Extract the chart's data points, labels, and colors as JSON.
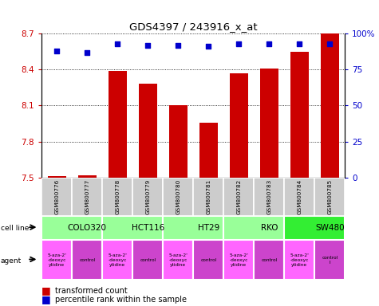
{
  "title": "GDS4397 / 243916_x_at",
  "samples": [
    "GSM800776",
    "GSM800777",
    "GSM800778",
    "GSM800779",
    "GSM800780",
    "GSM800781",
    "GSM800782",
    "GSM800783",
    "GSM800784",
    "GSM800785"
  ],
  "bar_values": [
    7.51,
    7.52,
    8.39,
    8.28,
    8.1,
    7.96,
    8.37,
    8.41,
    8.55,
    8.7
  ],
  "percentile_values": [
    88,
    87,
    93,
    92,
    92,
    91,
    93,
    93,
    93,
    93
  ],
  "ylim_left": [
    7.5,
    8.7
  ],
  "ylim_right": [
    0,
    100
  ],
  "yticks_left": [
    7.5,
    7.8,
    8.1,
    8.4,
    8.7
  ],
  "yticks_right": [
    0,
    25,
    50,
    75,
    100
  ],
  "bar_color": "#cc0000",
  "dot_color": "#0000cc",
  "cell_lines": [
    {
      "name": "COLO320",
      "start": 0,
      "end": 2,
      "color": "#99ff99"
    },
    {
      "name": "HCT116",
      "start": 2,
      "end": 4,
      "color": "#99ff99"
    },
    {
      "name": "HT29",
      "start": 4,
      "end": 6,
      "color": "#99ff99"
    },
    {
      "name": "RKO",
      "start": 6,
      "end": 8,
      "color": "#99ff99"
    },
    {
      "name": "SW480",
      "start": 8,
      "end": 10,
      "color": "#33ee33"
    }
  ],
  "agents": [
    {
      "name": "5-aza-2'\n-deoxyc\nytidine",
      "type": "drug",
      "col": 0
    },
    {
      "name": "control",
      "type": "control",
      "col": 1
    },
    {
      "name": "5-aza-2'\n-deoxyc\nytidine",
      "type": "drug",
      "col": 2
    },
    {
      "name": "control",
      "type": "control",
      "col": 3
    },
    {
      "name": "5-aza-2'\n-deoxyc\nytidine",
      "type": "drug",
      "col": 4
    },
    {
      "name": "control",
      "type": "control",
      "col": 5
    },
    {
      "name": "5-aza-2'\n-deoxyc\nytidine",
      "type": "drug",
      "col": 6
    },
    {
      "name": "control",
      "type": "control",
      "col": 7
    },
    {
      "name": "5-aza-2'\n-deoxyc\nytidine",
      "type": "drug",
      "col": 8
    },
    {
      "name": "control\nl",
      "type": "control",
      "col": 9
    }
  ],
  "drug_color": "#ff66ff",
  "control_color": "#cc44cc",
  "sample_bg_color": "#cccccc",
  "left_label_color": "#cc0000",
  "right_label_color": "#0000cc"
}
